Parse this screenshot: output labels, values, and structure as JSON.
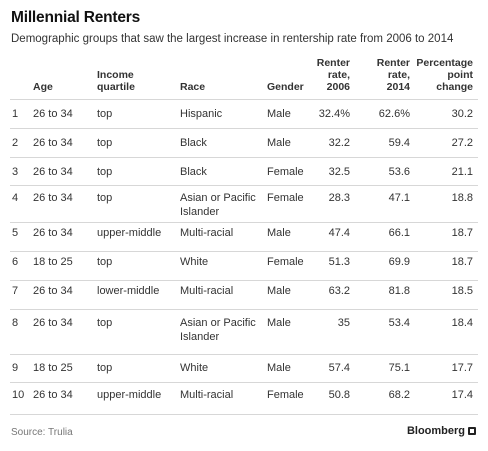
{
  "title": "Millennial Renters",
  "subtitle": "Demographic groups that saw the largest increase in rentership rate from 2006 to 2014",
  "source": "Source: Trulia",
  "brand": "Bloomberg",
  "chart_data": {
    "type": "table",
    "columns": [
      "",
      "Age",
      "Income quartile",
      "Race",
      "Gender",
      "Renter rate, 2006",
      "Renter rate, 2014",
      "Percentage point change"
    ],
    "rows": [
      [
        "1",
        "26 to 34",
        "top",
        "Hispanic",
        "Male",
        "32.4%",
        "62.6%",
        "30.2"
      ],
      [
        "2",
        "26 to 34",
        "top",
        "Black",
        "Male",
        "32.2",
        "59.4",
        "27.2"
      ],
      [
        "3",
        "26 to 34",
        "top",
        "Black",
        "Female",
        "32.5",
        "53.6",
        "21.1"
      ],
      [
        "4",
        "26 to 34",
        "top",
        "Asian or Pacific Islander",
        "Female",
        "28.3",
        "47.1",
        "18.8"
      ],
      [
        "5",
        "26 to 34",
        "upper-middle",
        "Multi-racial",
        "Male",
        "47.4",
        "66.1",
        "18.7"
      ],
      [
        "6",
        "18 to 25",
        "top",
        "White",
        "Female",
        "51.3",
        "69.9",
        "18.7"
      ],
      [
        "7",
        "26 to 34",
        "lower-middle",
        "Multi-racial",
        "Male",
        "63.2",
        "81.8",
        "18.5"
      ],
      [
        "8",
        "26 to 34",
        "top",
        "Asian or Pacific Islander",
        "Male",
        "35",
        "53.4",
        "18.4"
      ],
      [
        "9",
        "18 to 25",
        "top",
        "White",
        "Male",
        "57.4",
        "75.1",
        "17.7"
      ],
      [
        "10",
        "26 to 34",
        "upper-middle",
        "Multi-racial",
        "Female",
        "50.8",
        "68.2",
        "17.4"
      ]
    ]
  }
}
